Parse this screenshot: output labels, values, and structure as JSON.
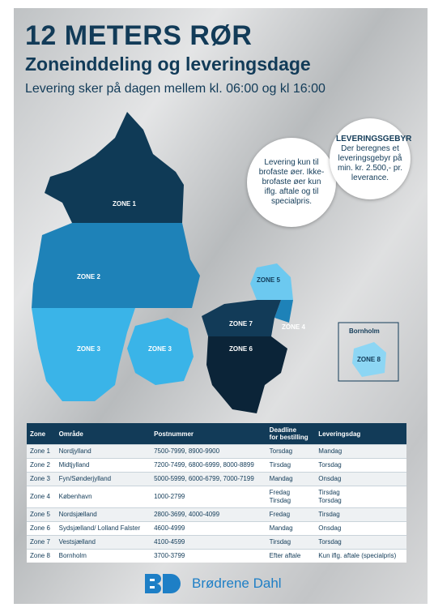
{
  "header": {
    "title": "12 METERS RØR",
    "subtitle": "Zoneinddeling og leveringsdage",
    "note": "Levering sker på dagen mellem kl. 06:00 og kl 16:00"
  },
  "bubbles": {
    "bridge": "Levering kun til brofaste øer. Ikke-brofaste øer kun iflg. aftale og til specialpris.",
    "fee_title": "LEVERINGSGEBYR",
    "fee_text": "Der beregnes et leveringsgebyr på min. kr. 2.500,- pr. leverance."
  },
  "map": {
    "zone1": "ZONE 1",
    "zone2": "ZONE 2",
    "zone3_jutland": "ZONE 3",
    "zone3_funen": "ZONE 3",
    "zone5": "ZONE 5",
    "zone7": "ZONE 7",
    "zone4": "ZONE 4",
    "zone6": "ZONE 6",
    "bornholm": "Bornholm",
    "zone8": "ZONE 8"
  },
  "table": {
    "columns": [
      "Zone",
      "Område",
      "Postnummer",
      [
        "Deadline",
        "for bestilling"
      ],
      "Leveringsdag"
    ],
    "rows": [
      [
        "Zone 1",
        "Nordjylland",
        "7500-7999, 8900-9900",
        "Torsdag",
        "Mandag"
      ],
      [
        "Zone 2",
        "Midtjylland",
        "7200-7499, 6800-6999, 8000-8899",
        "Tirsdag",
        "Torsdag"
      ],
      [
        "Zone 3",
        "Fyn/Sønderjylland",
        "5000-5999, 6000-6799, 7000-7199",
        "Mandag",
        "Onsdag"
      ],
      [
        "Zone 4",
        "København",
        "1000-2799",
        [
          "Fredag",
          "Tirsdag"
        ],
        [
          "Tirsdag",
          "Torsdag"
        ]
      ],
      [
        "Zone 5",
        "Nordsjælland",
        "2800-3699, 4000-4099",
        "Fredag",
        "Tirsdag"
      ],
      [
        "Zone 6",
        "Sydsjælland/ Lolland Falster",
        "4600-4999",
        "Mandag",
        "Onsdag"
      ],
      [
        "Zone 7",
        "Vestsjælland",
        "4100-4599",
        "Tirsdag",
        "Torsdag"
      ],
      [
        "Zone 8",
        "Bornholm",
        "3700-3799",
        "Efter aftale",
        "Kun iflg. aftale (specialpris)"
      ]
    ]
  },
  "footer": {
    "brand": "Brødrene Dahl"
  }
}
